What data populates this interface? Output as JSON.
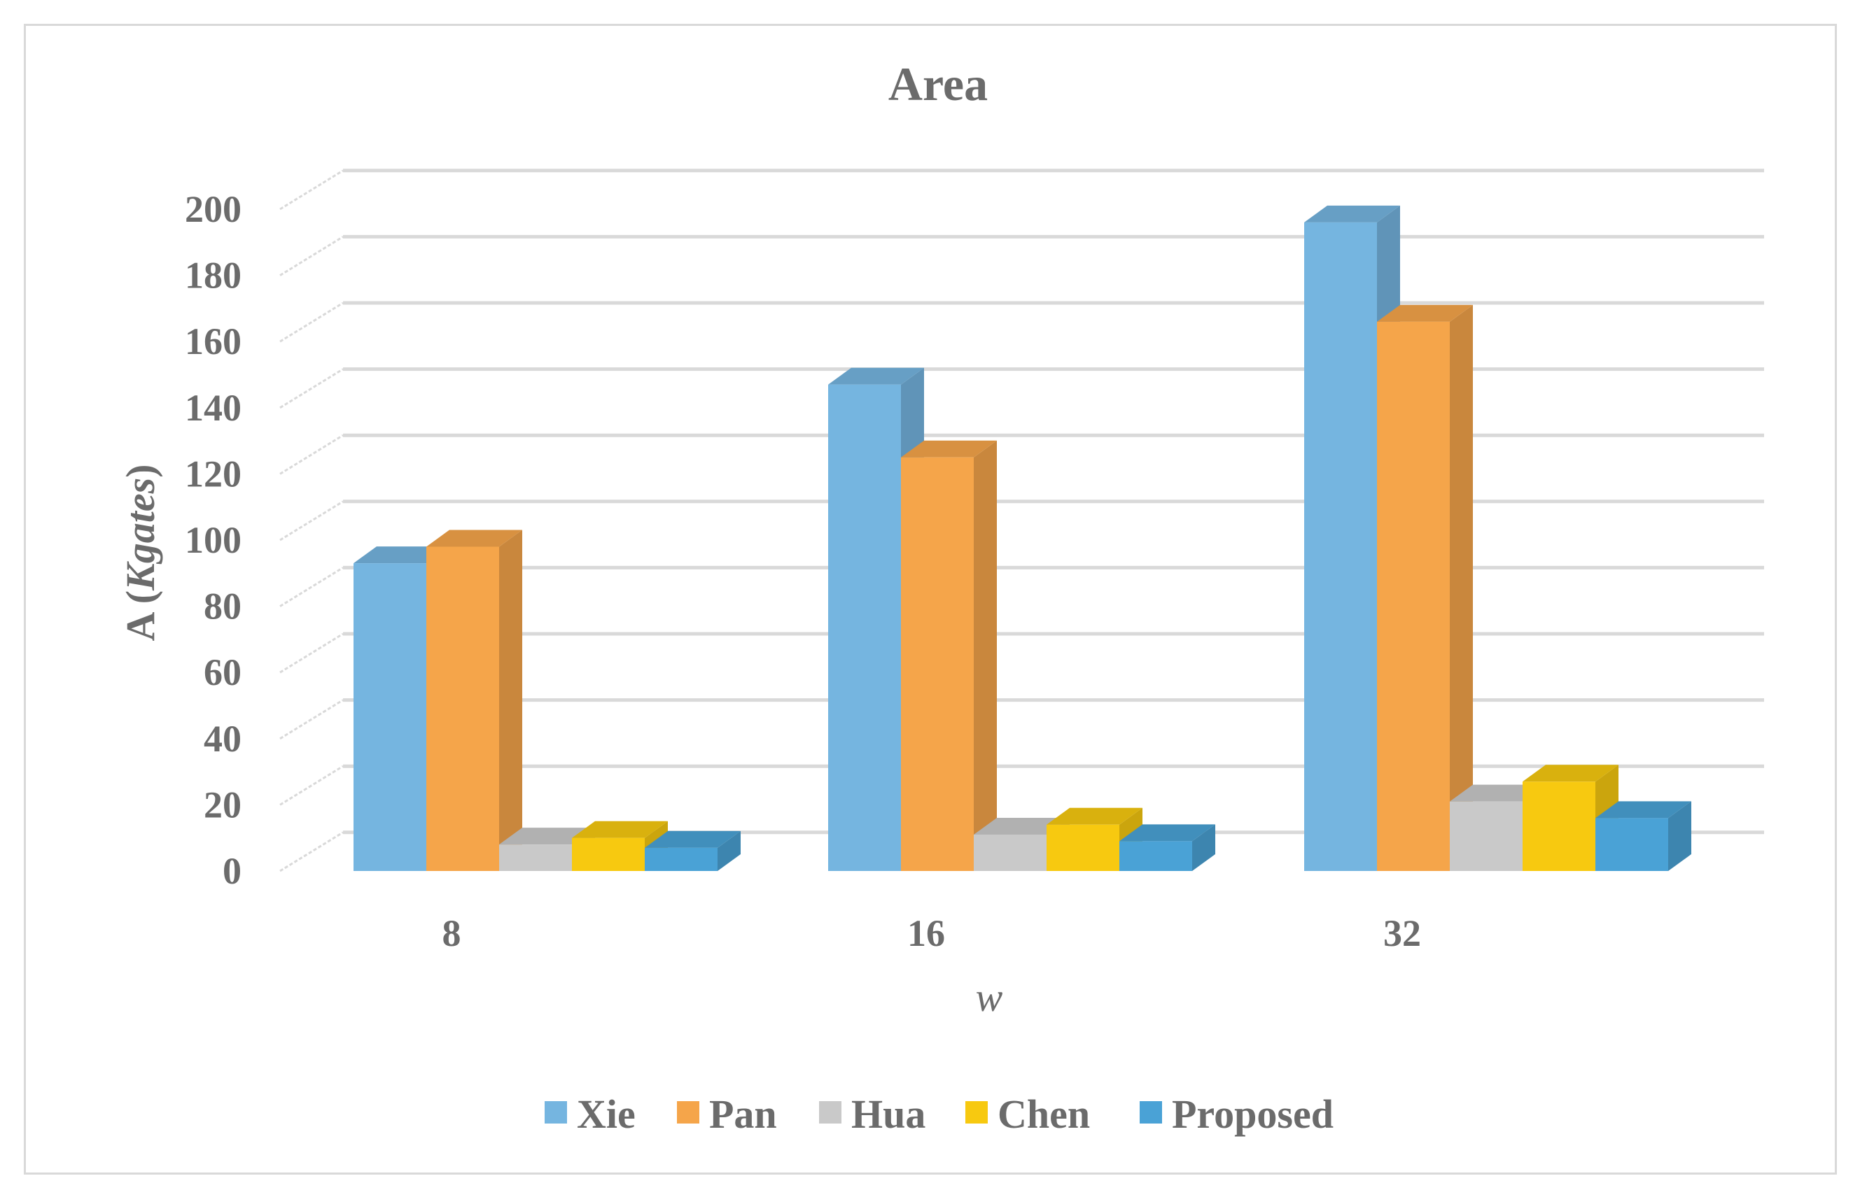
{
  "chart_data": {
    "type": "bar",
    "title": "Area",
    "xlabel": "w",
    "ylabel_main": "A (",
    "ylabel_italic": "Kgates",
    "ylabel_close": ")",
    "categories": [
      "8",
      "16",
      "32"
    ],
    "ylim": [
      0,
      200
    ],
    "yticks": [
      0,
      20,
      40,
      60,
      80,
      100,
      120,
      140,
      160,
      180,
      200
    ],
    "grid": true,
    "legend_position": "bottom",
    "series": [
      {
        "name": "Xie",
        "values": [
          93,
          147,
          196
        ],
        "color": "#75b5e0"
      },
      {
        "name": "Pan",
        "values": [
          98,
          125,
          166
        ],
        "color": "#f5a54a"
      },
      {
        "name": "Hua",
        "values": [
          8,
          11,
          21
        ],
        "color": "#c9c9c9"
      },
      {
        "name": "Chen",
        "values": [
          10,
          14,
          27
        ],
        "color": "#f7c910"
      },
      {
        "name": "Proposed",
        "values": [
          7,
          9,
          16
        ],
        "color": "#4aa2d6"
      }
    ]
  }
}
